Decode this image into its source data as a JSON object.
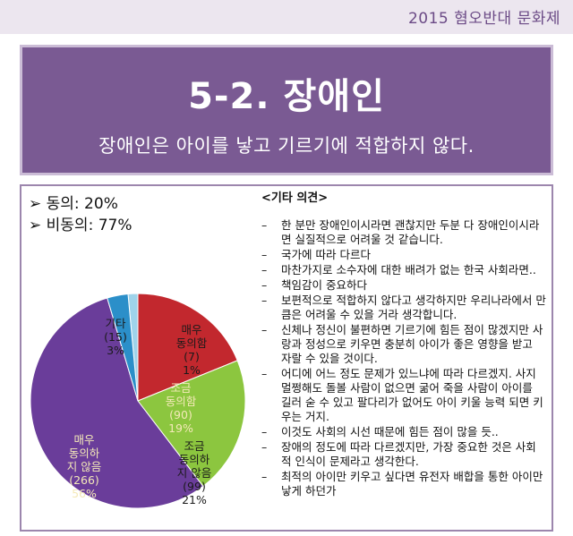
{
  "header": {
    "event_title": "2015 혐오반대 문화제"
  },
  "banner": {
    "title": "5-2. 장애인",
    "subtitle": "장애인은 아이를 낳고 기르기에 적합하지 않다."
  },
  "summary": {
    "items": [
      "➢ 동의: 20%",
      "➢ 비동의: 77%"
    ]
  },
  "comments": {
    "title": "<기타 의견>",
    "items": [
      "한 분만 장애인이시라면 괜찮지만 두분 다 장애인이시라면 실질적으로 어려울 것 같습니다.",
      "국가에 따라 다르다",
      "마찬가지로 소수자에 대한 배려가 없는 한국 사회라면..",
      "책임감이 중요하다",
      "보편적으로 적합하지 않다고 생각하지만 우리나라에서 만큼은 어려울 수 있을 거라 생각합니다.",
      "신체나 정신이 불편하면 기르기에 힘든 점이 많겠지만 사랑과 정성으로 키우면 충분히 아이가 좋은 영향을 받고 자랄 수 있을 것이다.",
      "어디에 어느 정도 문제가 있느냐에 따라 다르겠지. 사지 멀쩡해도 돌볼 사람이 없으면 굶어 죽을 사람이 아이를 길러 숟 수 있고 팔다리가 없어도 아이 키울 능력 되면 키우는 거지.",
      "이것도 사회의 시선 때문에 힘든 점이 많을 듯..",
      "장애의 정도에 따라 다르겠지만, 가장 중요한 것은 사회적 인식이 문제라고 생각한다.",
      "최적의 아이만 키우고 싶다면 유전자 배합을 통한 아이만 낳게 하던가"
    ]
  },
  "chart_data": {
    "type": "pie",
    "slices": [
      {
        "label": [
          "매우",
          "동의함"
        ],
        "count": "(7)",
        "percent": "1%",
        "value": 7,
        "color": "#9fd3ea"
      },
      {
        "label": [
          "조금",
          "동의함"
        ],
        "count": "(90)",
        "percent": "19%",
        "value": 90,
        "color": "#c2282e"
      },
      {
        "label": [
          "조금",
          "동의하",
          "지 않음"
        ],
        "count": "(99)",
        "percent": "21%",
        "value": 99,
        "color": "#8cc63f"
      },
      {
        "label": [
          "매우",
          "동의하",
          "지 않음"
        ],
        "count": "(266)",
        "percent": "56%",
        "value": 266,
        "color": "#6a3d9a"
      },
      {
        "label": [
          "기타"
        ],
        "count": "(15)",
        "percent": "3%",
        "value": 15,
        "color": "#2b8fc9"
      }
    ]
  }
}
